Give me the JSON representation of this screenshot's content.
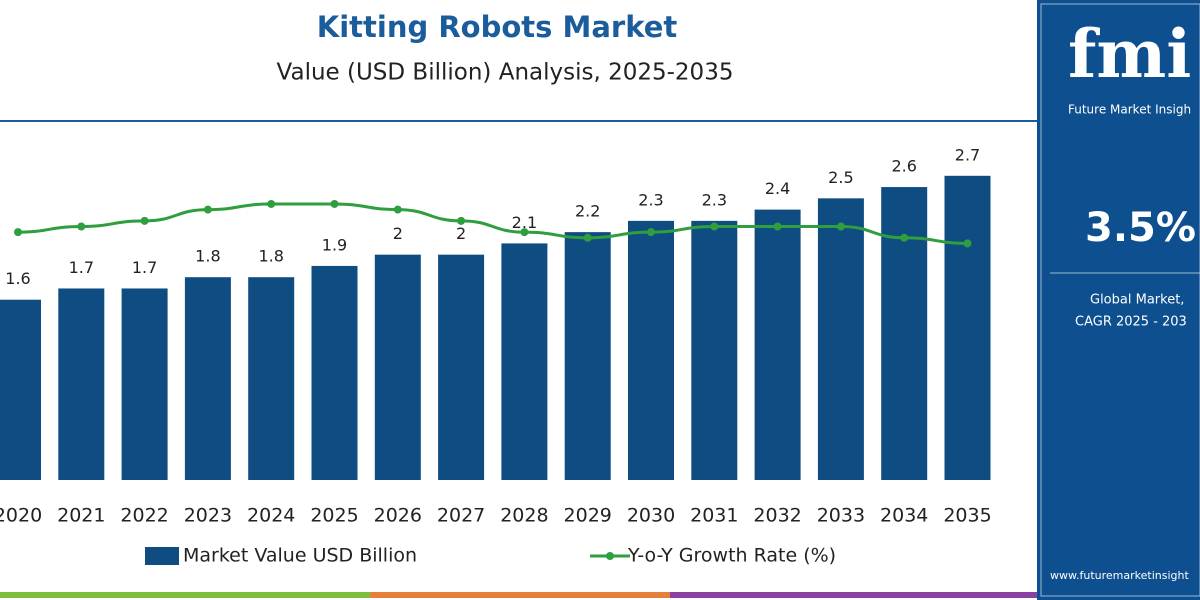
{
  "chart_data": {
    "type": "bar",
    "title": "Kitting Robots Market",
    "subtitle": "Value (USD Billion) Analysis, 2025-2035",
    "categories": [
      "2020",
      "2021",
      "2022",
      "2023",
      "2024",
      "2025",
      "2026",
      "2027",
      "2028",
      "2029",
      "2030",
      "2031",
      "2032",
      "2033",
      "2034",
      "2035"
    ],
    "series": [
      {
        "name": "Market Value USD Billion",
        "type": "bar",
        "color": "#0f4c81",
        "values": [
          1.6,
          1.7,
          1.7,
          1.8,
          1.8,
          1.9,
          2.0,
          2.0,
          2.1,
          2.2,
          2.3,
          2.3,
          2.4,
          2.5,
          2.6,
          2.7
        ]
      },
      {
        "name": "Y-o-Y Growth Rate (%)",
        "type": "line",
        "axis": "y2",
        "color": "#2e9e3e",
        "values": [
          3.4,
          3.5,
          3.6,
          3.8,
          3.9,
          3.9,
          3.8,
          3.6,
          3.4,
          3.3,
          3.4,
          3.5,
          3.5,
          3.5,
          3.3,
          3.2
        ]
      }
    ],
    "ylim": [
      0,
      3
    ],
    "y2lim": [
      -1,
      5
    ],
    "legend": "bottom"
  },
  "side_panel": {
    "logo": "fmi",
    "tagline": "Future Market Insigh",
    "cagr": "3.5%",
    "caption_1": "Global Market,",
    "caption_2": "CAGR 2025 - 203",
    "url": "www.futuremarketinsight"
  }
}
